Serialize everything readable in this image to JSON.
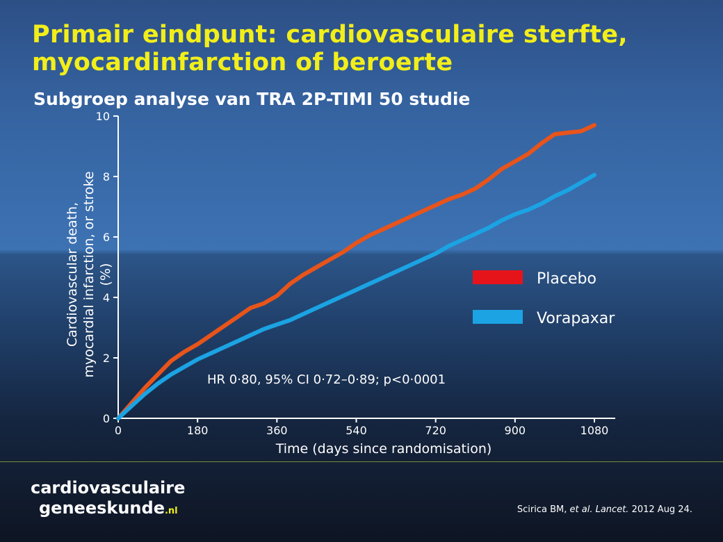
{
  "slide": {
    "title_line1": "Primair eindpunt: cardiovasculaire sterfte,",
    "title_line2": "myocardinfarction of beroerte",
    "subtitle": "Subgroep analyse van TRA 2P-TIMI 50 studie"
  },
  "footer": {
    "logo_line1": "cardiovasculaire",
    "logo_line2": "geneeskunde",
    "logo_suffix": ".nl",
    "citation_author": "Scirica BM,",
    "citation_etal": "et al. Lancet.",
    "citation_date": "2012 Aug 24."
  },
  "colors": {
    "title": "#f2ee1a",
    "placebo": "#e8541a",
    "placebo_legend": "#e5141b",
    "vorapaxar": "#1ba3e3",
    "axis": "#ffffff"
  },
  "chart_data": {
    "type": "line",
    "xlabel": "Time (days since randomisation)",
    "ylabel_lines": [
      "Cardiovascular death,",
      "myocardial infarction, or stroke",
      "(%)"
    ],
    "xlim": [
      0,
      1080
    ],
    "ylim": [
      0,
      10
    ],
    "xticks": [
      "0",
      "180",
      "360",
      "540",
      "720",
      "900",
      "1080"
    ],
    "yticks": [
      "0",
      "2",
      "4",
      "6",
      "8",
      "10"
    ],
    "annotation": "HR 0·80, 95% CI 0·72–0·89; p<0·0001",
    "legend_position": "right",
    "grid": false,
    "series": [
      {
        "name": "Placebo",
        "x": [
          0,
          30,
          60,
          90,
          120,
          150,
          180,
          210,
          240,
          270,
          300,
          330,
          360,
          390,
          420,
          450,
          480,
          510,
          540,
          570,
          600,
          630,
          660,
          690,
          720,
          750,
          780,
          810,
          840,
          870,
          900,
          930,
          960,
          990,
          1020,
          1050,
          1080
        ],
        "y": [
          0,
          0.5,
          1.0,
          1.45,
          1.9,
          2.2,
          2.45,
          2.75,
          3.05,
          3.35,
          3.65,
          3.8,
          4.05,
          4.45,
          4.75,
          5.0,
          5.25,
          5.5,
          5.8,
          6.05,
          6.25,
          6.45,
          6.65,
          6.85,
          7.05,
          7.25,
          7.4,
          7.6,
          7.9,
          8.25,
          8.5,
          8.75,
          9.1,
          9.4,
          9.45,
          9.5,
          9.7
        ]
      },
      {
        "name": "Vorapaxar",
        "x": [
          0,
          30,
          60,
          90,
          120,
          150,
          180,
          210,
          240,
          270,
          300,
          330,
          360,
          390,
          420,
          450,
          480,
          510,
          540,
          570,
          600,
          630,
          660,
          690,
          720,
          750,
          780,
          810,
          840,
          870,
          900,
          930,
          960,
          990,
          1020,
          1050,
          1080
        ],
        "y": [
          0,
          0.4,
          0.8,
          1.15,
          1.45,
          1.7,
          1.95,
          2.15,
          2.35,
          2.55,
          2.75,
          2.95,
          3.1,
          3.25,
          3.45,
          3.65,
          3.85,
          4.05,
          4.25,
          4.45,
          4.65,
          4.85,
          5.05,
          5.25,
          5.45,
          5.7,
          5.9,
          6.1,
          6.3,
          6.55,
          6.75,
          6.9,
          7.1,
          7.35,
          7.55,
          7.8,
          8.05
        ]
      }
    ]
  }
}
